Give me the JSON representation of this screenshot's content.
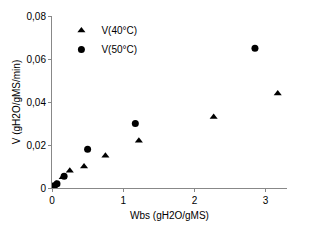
{
  "chart_data": {
    "type": "scatter",
    "x_label": "Wbs (gH2O/gMS)",
    "y_label": "V (gH2O/gMS/min)",
    "series": [
      {
        "name": "V(40°C)",
        "color": "#000000",
        "marker": "triangle-up",
        "x": [
          0.03,
          0.06,
          0.15,
          0.25,
          0.45,
          0.75,
          1.22,
          2.27,
          3.17
        ],
        "values": [
          0.001,
          0.002,
          0.005,
          0.008,
          0.01,
          0.015,
          0.022,
          0.033,
          0.044
        ]
      },
      {
        "name": "V(50°C)",
        "color": "#000000",
        "marker": "circle",
        "x": [
          0.03,
          0.07,
          0.17,
          0.5,
          1.17,
          2.85
        ],
        "values": [
          0.001,
          0.002,
          0.0055,
          0.018,
          0.03,
          0.065
        ]
      }
    ],
    "xlim": [
      0,
      3.3
    ],
    "xticks": [
      0,
      1,
      2,
      3
    ],
    "ylim": [
      0,
      0.08
    ],
    "yticks": [
      0,
      {
        "value": 0.02,
        "label": "0,02"
      },
      {
        "value": 0.04,
        "label": "0,04"
      },
      {
        "value": 0.06,
        "label": "0,06"
      },
      {
        "value": 0.08,
        "label": "0,08"
      }
    ],
    "grid": false,
    "legend": "top-left"
  }
}
